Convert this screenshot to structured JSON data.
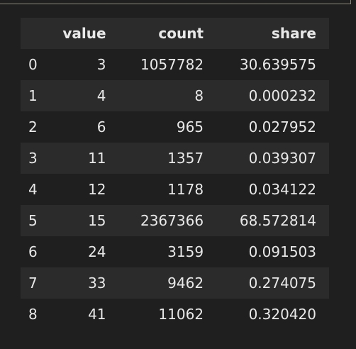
{
  "table": {
    "columns": [
      "",
      "value",
      "count",
      "share"
    ],
    "rows": [
      {
        "index": "0",
        "value": "3",
        "count": "1057782",
        "share": "30.639575"
      },
      {
        "index": "1",
        "value": "4",
        "count": "8",
        "share": "0.000232"
      },
      {
        "index": "2",
        "value": "6",
        "count": "965",
        "share": "0.027952"
      },
      {
        "index": "3",
        "value": "11",
        "count": "1357",
        "share": "0.039307"
      },
      {
        "index": "4",
        "value": "12",
        "count": "1178",
        "share": "0.034122"
      },
      {
        "index": "5",
        "value": "15",
        "count": "2367366",
        "share": "68.572814"
      },
      {
        "index": "6",
        "value": "24",
        "count": "3159",
        "share": "0.091503"
      },
      {
        "index": "7",
        "value": "33",
        "count": "9462",
        "share": "0.274075"
      },
      {
        "index": "8",
        "value": "41",
        "count": "11062",
        "share": "0.320420"
      }
    ]
  },
  "colors": {
    "background": "#1f1f1f",
    "stripe": "#2b2b2b",
    "text": "#e8e8e8"
  }
}
